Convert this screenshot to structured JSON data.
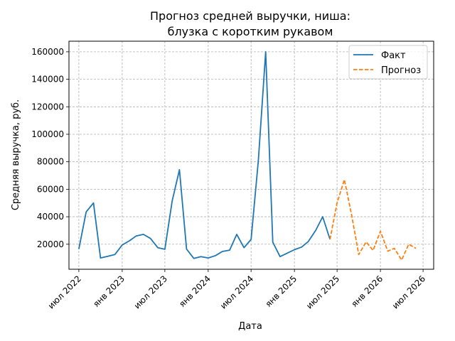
{
  "chart_data": {
    "type": "line",
    "title_lines": [
      "Прогноз средней выручки, ниша:",
      "блузка с коротким рукавом"
    ],
    "xlabel": "Дата",
    "ylabel": "Средняя выручка, руб.",
    "ylim": [
      1800,
      167700
    ],
    "xlim": [
      "2022-05-20",
      "2026-08-15"
    ],
    "grid": true,
    "legend_position": "top-right",
    "yticks": [
      20000,
      40000,
      60000,
      80000,
      100000,
      120000,
      140000,
      160000
    ],
    "xticks": [
      {
        "date": "2022-07-01",
        "label": "июл 2022"
      },
      {
        "date": "2023-01-01",
        "label": "янв 2023"
      },
      {
        "date": "2023-07-01",
        "label": "июл 2023"
      },
      {
        "date": "2024-01-01",
        "label": "янв 2024"
      },
      {
        "date": "2024-07-01",
        "label": "июл 2024"
      },
      {
        "date": "2025-01-01",
        "label": "янв 2025"
      },
      {
        "date": "2025-07-01",
        "label": "июл 2025"
      },
      {
        "date": "2026-01-01",
        "label": "янв 2026"
      },
      {
        "date": "2026-07-01",
        "label": "июл 2026"
      }
    ],
    "series": [
      {
        "name": "Факт",
        "color": "#1f77b4",
        "style": "solid",
        "points": [
          {
            "x": "2022-07-01",
            "y": 16500
          },
          {
            "x": "2022-08-01",
            "y": 43500
          },
          {
            "x": "2022-09-01",
            "y": 50000
          },
          {
            "x": "2022-10-01",
            "y": 10000
          },
          {
            "x": "2022-11-01",
            "y": 11200
          },
          {
            "x": "2022-12-01",
            "y": 12500
          },
          {
            "x": "2023-01-01",
            "y": 19500
          },
          {
            "x": "2023-02-01",
            "y": 22500
          },
          {
            "x": "2023-03-01",
            "y": 26000
          },
          {
            "x": "2023-04-01",
            "y": 27200
          },
          {
            "x": "2023-05-01",
            "y": 24200
          },
          {
            "x": "2023-06-01",
            "y": 17500
          },
          {
            "x": "2023-07-01",
            "y": 16300
          },
          {
            "x": "2023-08-01",
            "y": 51500
          },
          {
            "x": "2023-09-01",
            "y": 74200
          },
          {
            "x": "2023-10-01",
            "y": 16500
          },
          {
            "x": "2023-11-01",
            "y": 9700
          },
          {
            "x": "2023-12-01",
            "y": 11000
          },
          {
            "x": "2024-01-01",
            "y": 10000
          },
          {
            "x": "2024-02-01",
            "y": 11700
          },
          {
            "x": "2024-03-01",
            "y": 14700
          },
          {
            "x": "2024-04-01",
            "y": 15700
          },
          {
            "x": "2024-05-01",
            "y": 27200
          },
          {
            "x": "2024-06-01",
            "y": 17500
          },
          {
            "x": "2024-07-01",
            "y": 23500
          },
          {
            "x": "2024-08-01",
            "y": 81000
          },
          {
            "x": "2024-09-01",
            "y": 160000
          },
          {
            "x": "2024-10-01",
            "y": 21500
          },
          {
            "x": "2024-11-01",
            "y": 11000
          },
          {
            "x": "2024-12-01",
            "y": 13500
          },
          {
            "x": "2025-01-01",
            "y": 16000
          },
          {
            "x": "2025-02-01",
            "y": 18000
          },
          {
            "x": "2025-03-01",
            "y": 22000
          },
          {
            "x": "2025-04-01",
            "y": 30000
          },
          {
            "x": "2025-05-01",
            "y": 40000
          },
          {
            "x": "2025-06-01",
            "y": 23500
          }
        ]
      },
      {
        "name": "Прогноз",
        "color": "#ff7f0e",
        "style": "dashed",
        "points": [
          {
            "x": "2025-06-01",
            "y": 23500
          },
          {
            "x": "2025-07-01",
            "y": 50000
          },
          {
            "x": "2025-08-01",
            "y": 67000
          },
          {
            "x": "2025-09-01",
            "y": 41000
          },
          {
            "x": "2025-10-01",
            "y": 12500
          },
          {
            "x": "2025-11-01",
            "y": 21700
          },
          {
            "x": "2025-12-01",
            "y": 15500
          },
          {
            "x": "2026-01-01",
            "y": 29500
          },
          {
            "x": "2026-02-01",
            "y": 15000
          },
          {
            "x": "2026-03-01",
            "y": 17000
          },
          {
            "x": "2026-04-01",
            "y": 8500
          },
          {
            "x": "2026-05-01",
            "y": 20000
          },
          {
            "x": "2026-06-01",
            "y": 17000
          }
        ]
      }
    ]
  }
}
